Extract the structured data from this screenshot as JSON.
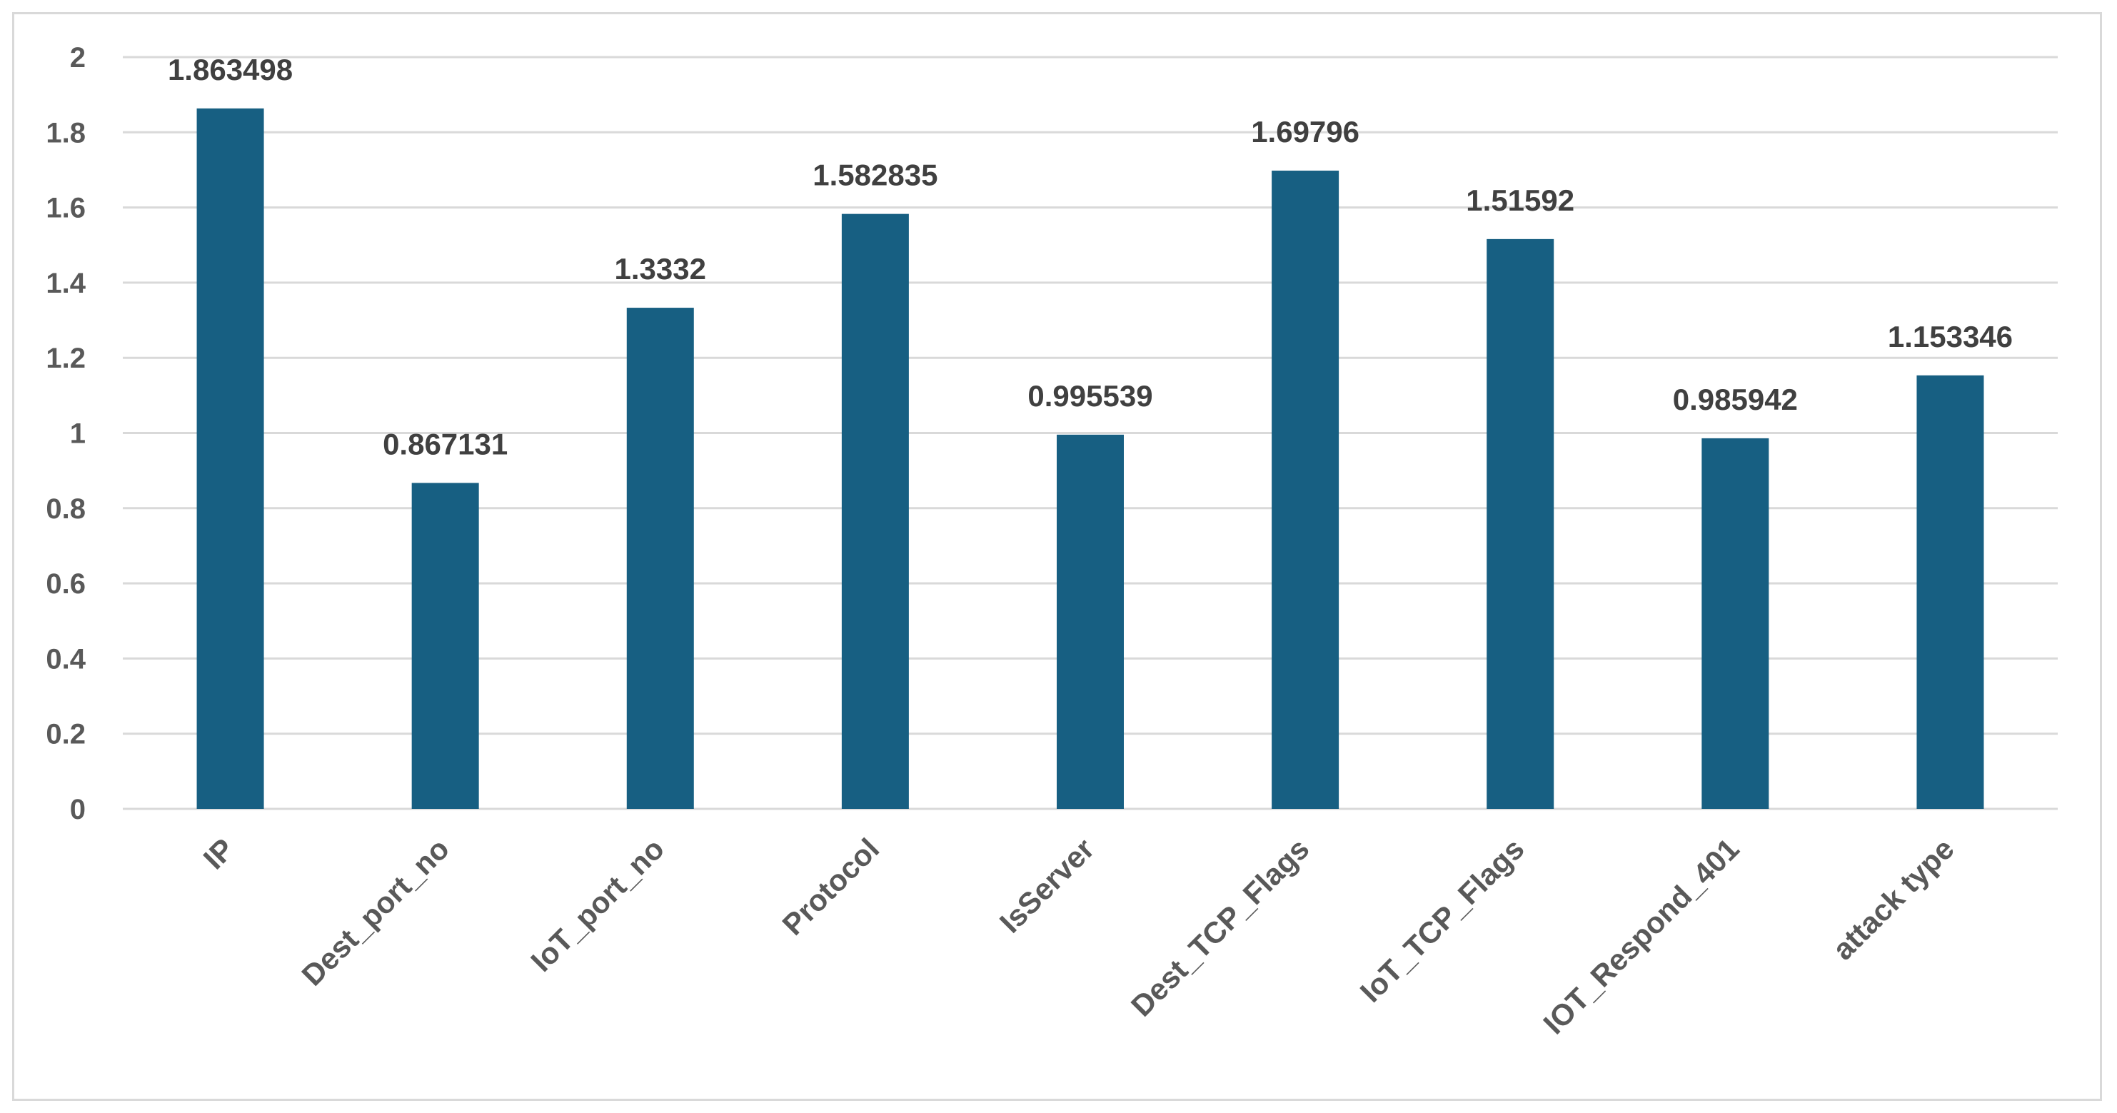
{
  "chart_data": {
    "type": "bar",
    "title": "",
    "xlabel": "",
    "ylabel": "",
    "categories": [
      "IP",
      "Dest_port_no",
      "IoT_port_no",
      "Protocol",
      "IsServer",
      "Dest_TCP_Flags",
      "IoT_TCP_Flags",
      "IOT_Respond_401",
      "attack type"
    ],
    "values": [
      1.863498,
      0.867131,
      1.3332,
      1.582835,
      0.995539,
      1.69796,
      1.51592,
      0.985942,
      1.153346
    ],
    "data_labels": [
      "1.863498",
      "0.867131",
      "1.3332",
      "1.582835",
      "0.995539",
      "1.69796",
      "1.51592",
      "0.985942",
      "1.153346"
    ],
    "yticks": [
      0,
      0.2,
      0.4,
      0.6,
      0.8,
      1,
      1.2,
      1.4,
      1.6,
      1.8,
      2
    ],
    "ytick_labels": [
      "0",
      "0.2",
      "0.4",
      "0.6",
      "0.8",
      "1",
      "1.2",
      "1.4",
      "1.6",
      "1.8",
      "2"
    ],
    "ylim": [
      0,
      2
    ],
    "grid": true,
    "legend": "none",
    "colors": {
      "bar": "#175f82",
      "grid": "#d9d9d9",
      "tick_text": "#595959",
      "label_text": "#404040"
    }
  }
}
